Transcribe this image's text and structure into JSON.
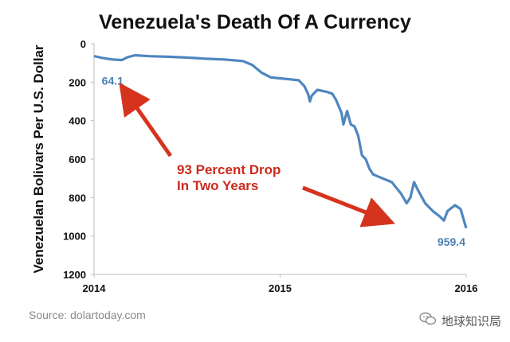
{
  "chart_data": {
    "type": "line",
    "title": "Venezuela's Death Of A Currency",
    "ylabel": "Venezuelan Bolivars Per U.S. Dollar",
    "xlabel": "",
    "x_ticks": [
      "2014",
      "2015",
      "2016"
    ],
    "y_ticks": [
      0,
      200,
      400,
      600,
      800,
      1000,
      1200
    ],
    "xlim": [
      2014.0,
      2016.0
    ],
    "ylim": [
      0,
      1200
    ],
    "y_inverted": true,
    "grid": false,
    "series": [
      {
        "color": "#4f86c0",
        "points": [
          [
            2014.0,
            64.1
          ],
          [
            2014.05,
            75
          ],
          [
            2014.1,
            82
          ],
          [
            2014.15,
            85
          ],
          [
            2014.18,
            70
          ],
          [
            2014.22,
            60
          ],
          [
            2014.3,
            65
          ],
          [
            2014.4,
            68
          ],
          [
            2014.5,
            72
          ],
          [
            2014.6,
            78
          ],
          [
            2014.7,
            82
          ],
          [
            2014.8,
            90
          ],
          [
            2014.85,
            110
          ],
          [
            2014.9,
            150
          ],
          [
            2014.95,
            175
          ],
          [
            2015.0,
            180
          ],
          [
            2015.05,
            185
          ],
          [
            2015.1,
            190
          ],
          [
            2015.13,
            220
          ],
          [
            2015.15,
            260
          ],
          [
            2015.16,
            300
          ],
          [
            2015.17,
            270
          ],
          [
            2015.2,
            240
          ],
          [
            2015.25,
            250
          ],
          [
            2015.28,
            260
          ],
          [
            2015.3,
            290
          ],
          [
            2015.33,
            360
          ],
          [
            2015.34,
            420
          ],
          [
            2015.36,
            350
          ],
          [
            2015.38,
            420
          ],
          [
            2015.4,
            430
          ],
          [
            2015.42,
            480
          ],
          [
            2015.44,
            580
          ],
          [
            2015.46,
            600
          ],
          [
            2015.48,
            650
          ],
          [
            2015.5,
            680
          ],
          [
            2015.55,
            700
          ],
          [
            2015.6,
            720
          ],
          [
            2015.65,
            780
          ],
          [
            2015.68,
            830
          ],
          [
            2015.7,
            800
          ],
          [
            2015.72,
            720
          ],
          [
            2015.74,
            760
          ],
          [
            2015.78,
            830
          ],
          [
            2015.82,
            870
          ],
          [
            2015.86,
            900
          ],
          [
            2015.88,
            920
          ],
          [
            2015.9,
            870
          ],
          [
            2015.94,
            840
          ],
          [
            2015.97,
            860
          ],
          [
            2016.0,
            959.4
          ]
        ]
      }
    ],
    "data_labels": [
      {
        "text": "64.1",
        "x": 2014.05,
        "y": 64.1
      },
      {
        "text": "959.4",
        "x": 2016.0,
        "y": 959.4
      }
    ],
    "annotation": {
      "lines": [
        "93 Percent Drop",
        "In Two Years"
      ],
      "color": "#cc2a1c"
    }
  },
  "source": "Source: dolartoday.com",
  "watermark": {
    "label": "地球知识局",
    "icon": "wechat-icon"
  }
}
